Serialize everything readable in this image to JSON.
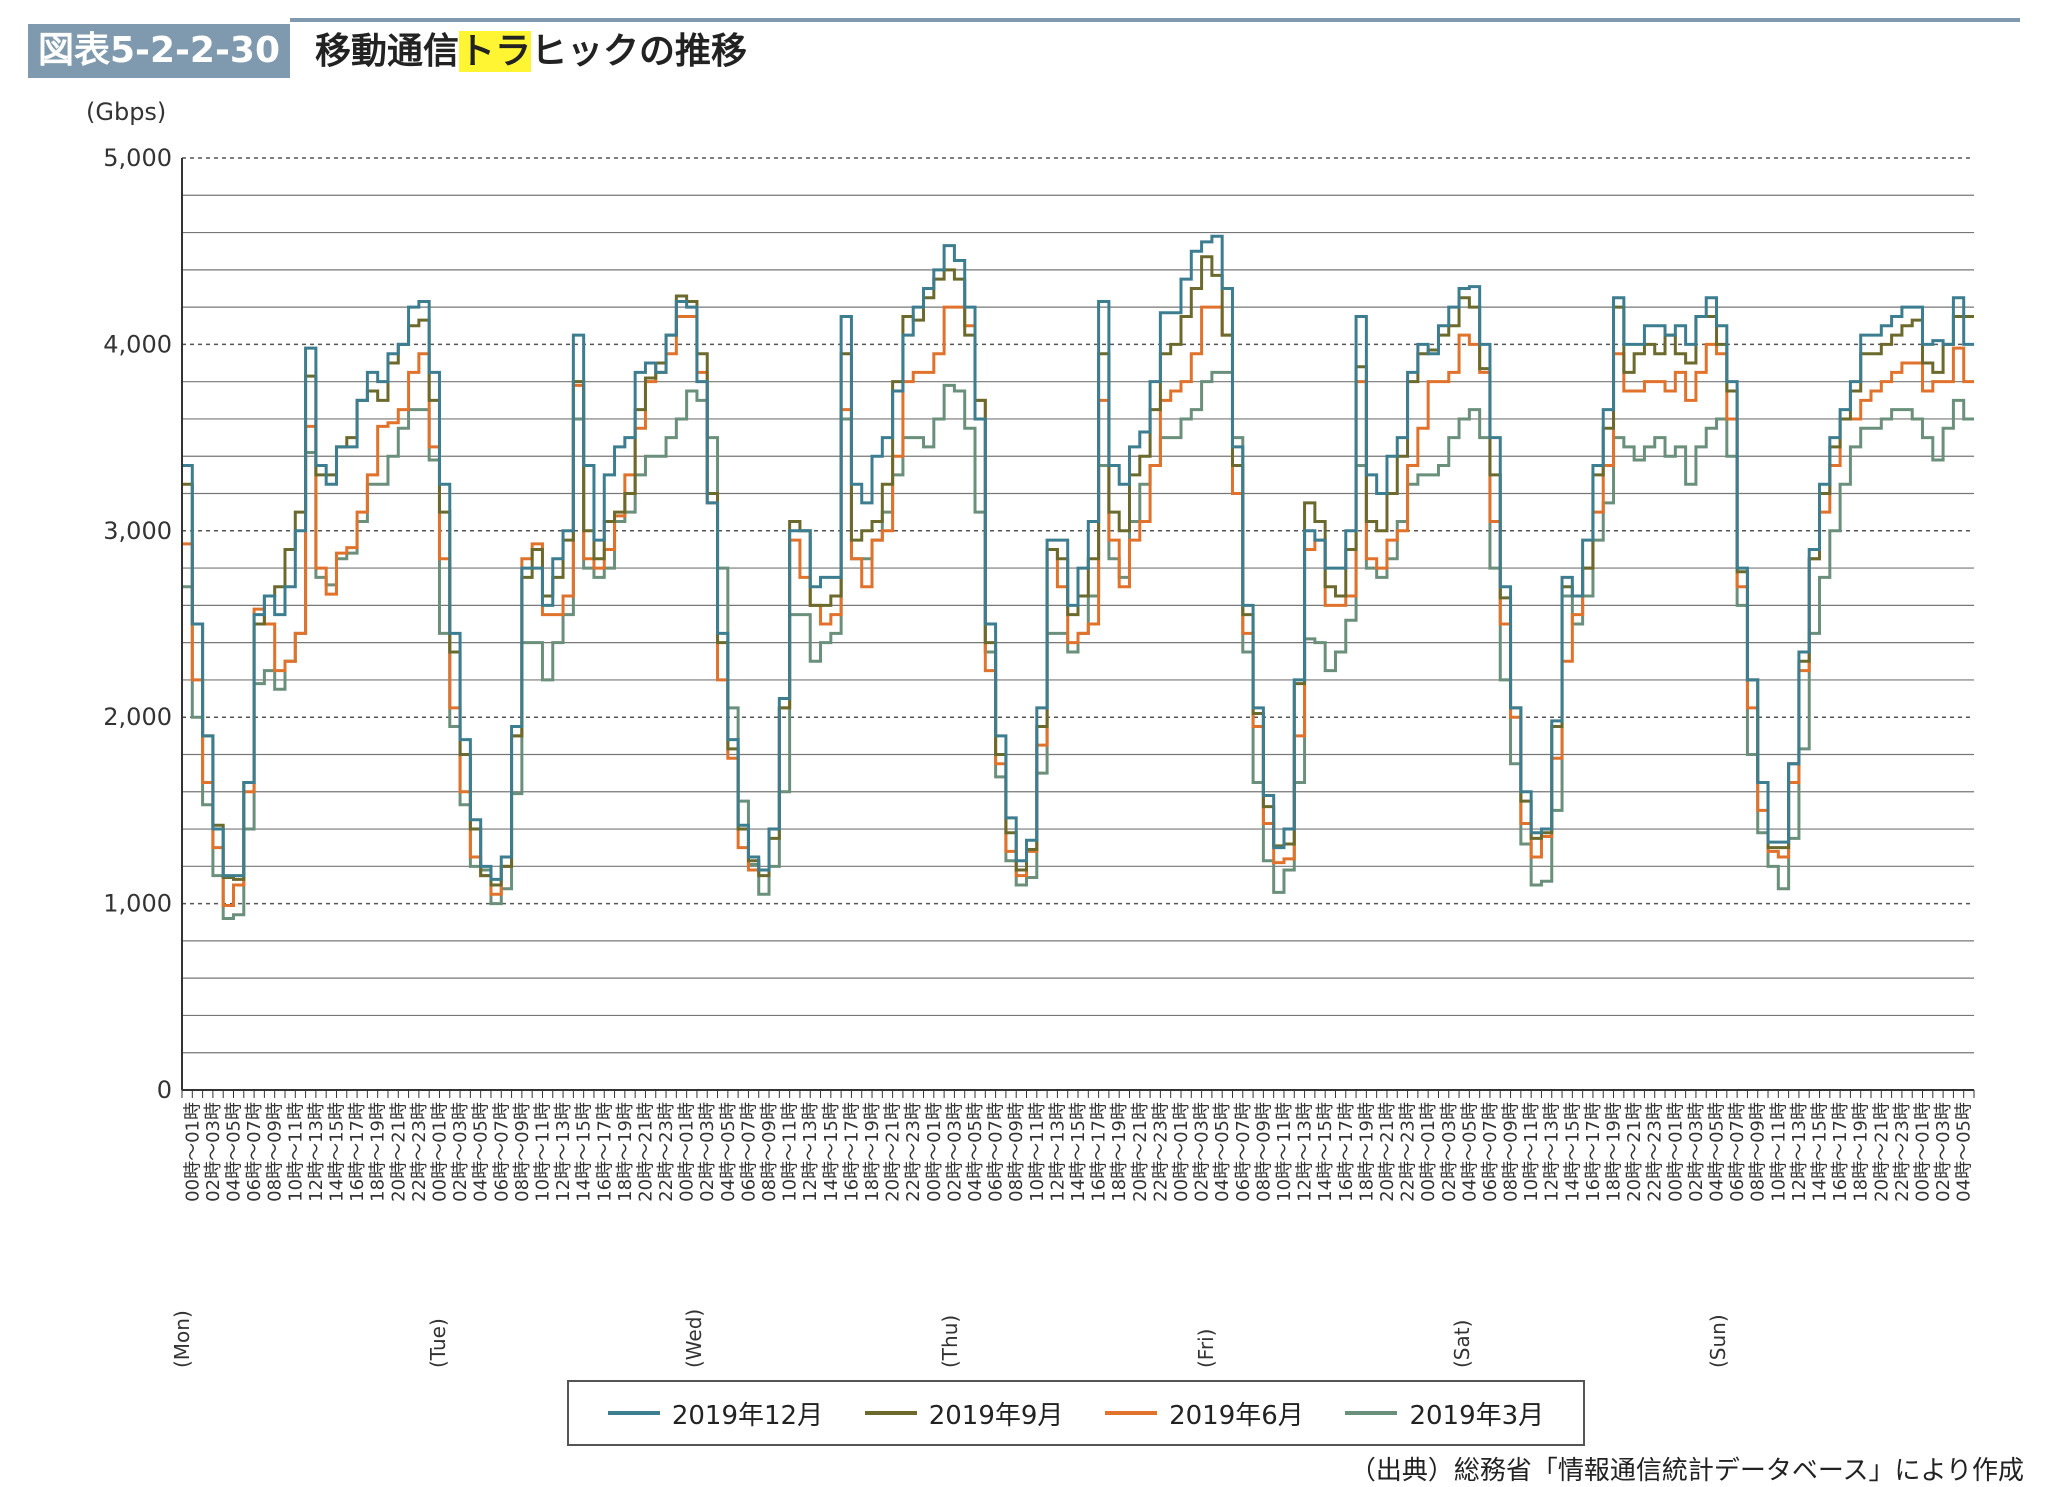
{
  "header": {
    "figure_label": "図表5-2-2-30",
    "title_parts": [
      "移動通信",
      "トラ",
      "ヒックの推移"
    ]
  },
  "source": "（出典）総務省「情報通信統計データベース」により作成",
  "chart_data": {
    "type": "line",
    "title": "移動通信トラヒックの推移",
    "ylabel": "(Gbps)",
    "ylim": [
      0,
      5000
    ],
    "y_ticks": [
      0,
      1000,
      2000,
      3000,
      4000,
      5000
    ],
    "y_tick_labels": [
      "0",
      "1,000",
      "2,000",
      "3,000",
      "4,000",
      "5,000"
    ],
    "grid": "minor every 200, dashed every 1000",
    "legend_position": "bottom",
    "step": true,
    "days": [
      "(Mon)",
      "(Tue)",
      "(Wed)",
      "(Thu)",
      "(Fri)",
      "(Sat)",
      "(Sun)"
    ],
    "hour_labels": [
      "00時～01時",
      "02時～03時",
      "04時～05時",
      "06時～07時",
      "08時～09時",
      "10時～11時",
      "12時～13時",
      "14時～15時",
      "16時～17時",
      "18時～19時",
      "20時～21時",
      "22時～23時"
    ],
    "series": [
      {
        "name": "2019年12月",
        "color": "#3c7d8f",
        "values": [
          3350,
          2500,
          1900,
          1400,
          1150,
          1150,
          1650,
          2550,
          2650,
          2550,
          2700,
          3000,
          3980,
          3350,
          3250,
          3450,
          3450,
          3700,
          3850,
          3800,
          3950,
          4000,
          4200,
          4230,
          3850,
          3250,
          2450,
          1880,
          1450,
          1200,
          1130,
          1250,
          1950,
          2800,
          2800,
          2600,
          2850,
          3000,
          4050,
          3350,
          2950,
          3300,
          3450,
          3500,
          3850,
          3900,
          3850,
          4050,
          4230,
          4200,
          3800,
          3150,
          2450,
          1880,
          1420,
          1250,
          1180,
          1400,
          2100,
          3000,
          3000,
          2700,
          2750,
          2750,
          4150,
          3250,
          3150,
          3400,
          3500,
          3750,
          4050,
          4200,
          4300,
          4400,
          4530,
          4450,
          4200,
          3600,
          2500,
          1900,
          1460,
          1230,
          1340,
          2050,
          2950,
          2950,
          2600,
          2800,
          3050,
          4230,
          3350,
          3250,
          3450,
          3530,
          3800,
          4170,
          4170,
          4350,
          4500,
          4550,
          4580,
          4300,
          3450,
          2600,
          2050,
          1580,
          1300,
          1400,
          2200,
          3000,
          2950,
          2800,
          2800,
          3000,
          4150,
          3300,
          3200,
          3400,
          3500,
          3850,
          4000,
          3950,
          4100,
          4200,
          4300,
          4310,
          4000,
          3500,
          2700,
          2050,
          1600,
          1380,
          1400,
          1980,
          2750,
          2650,
          2950,
          3350,
          3650,
          4250,
          4000,
          4000,
          4100,
          4100,
          4050,
          4100,
          4000,
          4150,
          4250,
          4100,
          3800,
          2800,
          2200,
          1650,
          1330,
          1330,
          1750,
          2350,
          2900,
          3250,
          3500,
          3650,
          3800,
          4050,
          4050,
          4100,
          4150,
          4200,
          4200,
          4000,
          4020,
          4000,
          4250,
          4000
        ]
      },
      {
        "name": "2019年9月",
        "color": "#6b6a2c",
        "values": [
          3250,
          2500,
          1900,
          1420,
          1140,
          1130,
          1650,
          2500,
          2650,
          2700,
          2900,
          3100,
          3830,
          3300,
          3300,
          3450,
          3500,
          3700,
          3750,
          3700,
          3900,
          4000,
          4100,
          4130,
          3700,
          3100,
          2350,
          1800,
          1400,
          1150,
          1100,
          1200,
          1900,
          2750,
          2900,
          2650,
          2750,
          2950,
          3800,
          3000,
          2850,
          3050,
          3100,
          3200,
          3650,
          3820,
          3900,
          4050,
          4260,
          4230,
          3950,
          3200,
          2400,
          1830,
          1400,
          1230,
          1150,
          1350,
          2050,
          3050,
          3000,
          2600,
          2600,
          2650,
          3950,
          2950,
          3000,
          3050,
          3250,
          3800,
          4150,
          4130,
          4250,
          4350,
          4400,
          4350,
          4050,
          3700,
          2400,
          1800,
          1380,
          1180,
          1290,
          1950,
          2900,
          2850,
          2550,
          2650,
          2850,
          3950,
          3100,
          3000,
          3300,
          3400,
          3650,
          3950,
          4000,
          4150,
          4300,
          4470,
          4370,
          4050,
          3350,
          2550,
          2020,
          1520,
          1310,
          1320,
          2180,
          3150,
          3050,
          2700,
          2650,
          2900,
          3880,
          3050,
          3000,
          3200,
          3400,
          3800,
          3950,
          3970,
          4050,
          4100,
          4250,
          4200,
          3870,
          3300,
          2640,
          2050,
          1550,
          1350,
          1380,
          1950,
          2700,
          2650,
          2800,
          3300,
          3550,
          4200,
          3850,
          3950,
          4000,
          3950,
          4050,
          3950,
          3900,
          4150,
          4150,
          4000,
          3750,
          2780,
          2200,
          1650,
          1300,
          1300,
          1750,
          2300,
          2850,
          3200,
          3450,
          3600,
          3750,
          3950,
          3950,
          4000,
          4050,
          4100,
          4130,
          3900,
          3850,
          4000,
          4150,
          4150
        ]
      },
      {
        "name": "2019年6月",
        "color": "#e0722c",
        "values": [
          2930,
          2200,
          1650,
          1300,
          990,
          1100,
          1600,
          2580,
          2500,
          2250,
          2300,
          2450,
          3560,
          2800,
          2660,
          2880,
          2910,
          3100,
          3300,
          3560,
          3580,
          3650,
          3850,
          3950,
          3450,
          2850,
          2050,
          1600,
          1250,
          1150,
          1050,
          1200,
          1900,
          2850,
          2930,
          2550,
          2550,
          2650,
          3780,
          2850,
          2800,
          2900,
          3080,
          3300,
          3550,
          3800,
          3850,
          3950,
          4150,
          4150,
          3850,
          3150,
          2200,
          1780,
          1300,
          1180,
          1180,
          1400,
          2050,
          2950,
          2750,
          2600,
          2500,
          2550,
          3650,
          2850,
          2700,
          2950,
          3000,
          3400,
          3800,
          3850,
          3850,
          3950,
          4200,
          4200,
          4100,
          3700,
          2250,
          1750,
          1280,
          1150,
          1280,
          1850,
          2900,
          2700,
          2400,
          2450,
          2500,
          3700,
          2950,
          2700,
          2950,
          3050,
          3350,
          3700,
          3750,
          3800,
          3950,
          4200,
          4200,
          4050,
          3200,
          2450,
          1950,
          1430,
          1220,
          1240,
          1900,
          2900,
          2950,
          2600,
          2600,
          2650,
          3800,
          2850,
          2800,
          2950,
          3000,
          3350,
          3550,
          3800,
          3800,
          3850,
          4050,
          4000,
          3850,
          3050,
          2500,
          2000,
          1430,
          1250,
          1360,
          1780,
          2300,
          2550,
          2800,
          3100,
          3350,
          3950,
          3750,
          3750,
          3800,
          3800,
          3750,
          3850,
          3700,
          3850,
          4000,
          3950,
          3600,
          2700,
          2050,
          1500,
          1280,
          1250,
          1650,
          2250,
          2850,
          3100,
          3350,
          3600,
          3600,
          3700,
          3750,
          3800,
          3850,
          3900,
          3900,
          3750,
          3800,
          3800,
          3980,
          3800
        ]
      },
      {
        "name": "2019年3月",
        "color": "#6a8f7b",
        "values": [
          2700,
          2000,
          1530,
          1150,
          920,
          940,
          1400,
          2180,
          2250,
          2150,
          2300,
          2450,
          3420,
          2750,
          2710,
          2850,
          2880,
          3050,
          3250,
          3250,
          3400,
          3550,
          3650,
          3650,
          3380,
          2450,
          1950,
          1530,
          1200,
          1180,
          1000,
          1080,
          1590,
          2400,
          2400,
          2200,
          2400,
          2550,
          3600,
          2800,
          2750,
          2800,
          3050,
          3100,
          3300,
          3400,
          3400,
          3500,
          3600,
          3750,
          3700,
          3500,
          2800,
          2050,
          1550,
          1210,
          1050,
          1200,
          1600,
          2550,
          2550,
          2300,
          2400,
          2450,
          3600,
          2850,
          2850,
          2950,
          3100,
          3300,
          3500,
          3500,
          3450,
          3600,
          3780,
          3750,
          3550,
          3100,
          2350,
          1680,
          1230,
          1100,
          1140,
          1700,
          2450,
          2450,
          2350,
          2450,
          2650,
          3350,
          2850,
          2750,
          3050,
          3250,
          3350,
          3500,
          3500,
          3600,
          3650,
          3800,
          3850,
          3850,
          3500,
          2350,
          1650,
          1230,
          1060,
          1180,
          1650,
          2420,
          2400,
          2250,
          2350,
          2520,
          3350,
          2800,
          2750,
          2850,
          3050,
          3250,
          3300,
          3300,
          3350,
          3500,
          3600,
          3650,
          3500,
          2800,
          2200,
          1750,
          1320,
          1100,
          1120,
          1500,
          2650,
          2500,
          2650,
          2950,
          3150,
          3500,
          3450,
          3380,
          3450,
          3500,
          3400,
          3450,
          3250,
          3450,
          3550,
          3600,
          3400,
          2600,
          1800,
          1380,
          1200,
          1080,
          1350,
          1830,
          2450,
          2750,
          3000,
          3250,
          3450,
          3550,
          3550,
          3600,
          3650,
          3650,
          3600,
          3500,
          3380,
          3550,
          3700,
          3600
        ]
      }
    ]
  }
}
